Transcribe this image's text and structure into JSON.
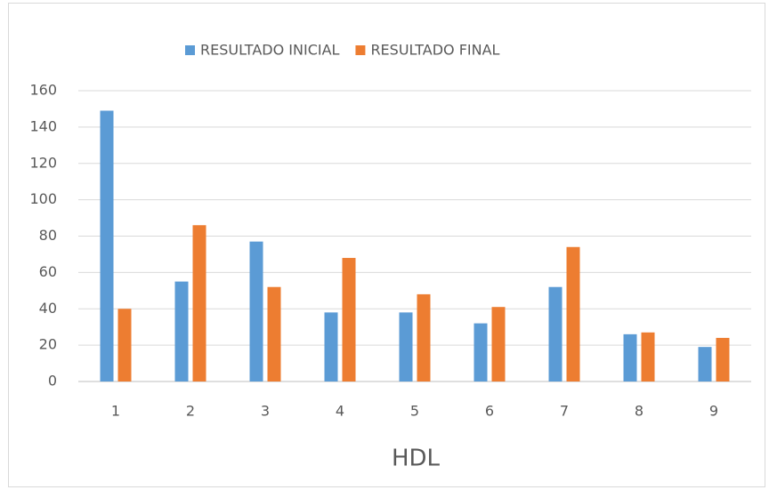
{
  "chart_data": {
    "type": "bar",
    "x_label": "HDL",
    "categories": [
      "1",
      "2",
      "3",
      "4",
      "5",
      "6",
      "7",
      "8",
      "9"
    ],
    "series": [
      {
        "name": "RESULTADO INICIAL",
        "color": "#5b9bd5",
        "values": [
          149,
          55,
          77,
          38,
          38,
          32,
          52,
          26,
          19
        ]
      },
      {
        "name": "RESULTADO FINAL",
        "color": "#ed7d31",
        "values": [
          40,
          86,
          52,
          68,
          48,
          41,
          74,
          27,
          24
        ]
      }
    ],
    "ylim": [
      0,
      160
    ],
    "yticks": [
      0,
      20,
      40,
      60,
      80,
      100,
      120,
      140,
      160
    ],
    "grid": true,
    "legend": "top"
  }
}
